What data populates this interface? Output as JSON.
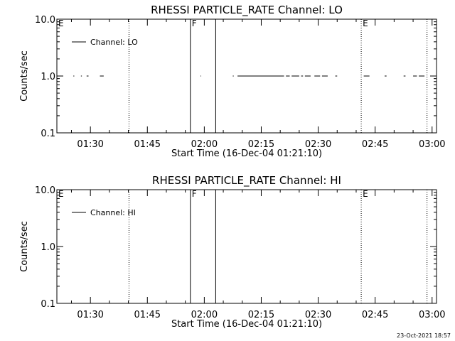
{
  "footer": {
    "timestamp": "23-Oct-2021 18:57"
  },
  "chart_data": [
    {
      "type": "line",
      "title": "RHESSI PARTICLE_RATE Channel: LO",
      "xlabel": "Start Time (16-Dec-04 01:21:10)",
      "ylabel": "Counts/sec",
      "y_scale": "log",
      "ylim": [
        0.1,
        10.0
      ],
      "xlim": [
        "01:21:10",
        "03:01:10"
      ],
      "x_tick_labels": [
        "01:30",
        "01:45",
        "02:00",
        "02:15",
        "02:30",
        "02:45",
        "03:00"
      ],
      "y_tick_labels": [
        "0.1",
        "1.0",
        "10.0"
      ],
      "legend": {
        "position": "top-left",
        "entries": [
          "Channel: LO"
        ]
      },
      "series": [
        {
          "name": "Channel: LO",
          "color": "#000000",
          "segments": [
            {
              "x": [
                "01:25:30",
                "01:25:45"
              ],
              "y": [
                1.0,
                1.0
              ]
            },
            {
              "x": [
                "01:27:30",
                "01:27:45"
              ],
              "y": [
                1.0,
                1.0
              ]
            },
            {
              "x": [
                "01:29:00",
                "01:29:30"
              ],
              "y": [
                1.0,
                1.0
              ]
            },
            {
              "x": [
                "01:32:30",
                "01:33:30"
              ],
              "y": [
                1.0,
                1.0
              ]
            },
            {
              "x": [
                "01:59:00",
                "01:59:10"
              ],
              "y": [
                1.0,
                1.0
              ]
            },
            {
              "x": [
                "02:07:30",
                "02:07:45"
              ],
              "y": [
                1.0,
                1.0
              ]
            },
            {
              "x": [
                "02:08:45",
                "02:21:00"
              ],
              "y": [
                1.0,
                1.0
              ]
            },
            {
              "x": [
                "02:21:30",
                "02:22:30"
              ],
              "y": [
                1.0,
                1.0
              ]
            },
            {
              "x": [
                "02:23:00",
                "02:25:00"
              ],
              "y": [
                1.0,
                1.0
              ]
            },
            {
              "x": [
                "02:25:30",
                "02:26:00"
              ],
              "y": [
                1.0,
                1.0
              ]
            },
            {
              "x": [
                "02:26:30",
                "02:28:00"
              ],
              "y": [
                1.0,
                1.0
              ]
            },
            {
              "x": [
                "02:29:00",
                "02:30:30"
              ],
              "y": [
                1.0,
                1.0
              ]
            },
            {
              "x": [
                "02:31:00",
                "02:32:30"
              ],
              "y": [
                1.0,
                1.0
              ]
            },
            {
              "x": [
                "02:34:30",
                "02:35:00"
              ],
              "y": [
                1.0,
                1.0
              ]
            },
            {
              "x": [
                "02:42:00",
                "02:43:30"
              ],
              "y": [
                1.0,
                1.0
              ]
            },
            {
              "x": [
                "02:47:30",
                "02:48:00"
              ],
              "y": [
                1.0,
                1.0
              ]
            },
            {
              "x": [
                "02:52:30",
                "02:53:00"
              ],
              "y": [
                1.0,
                1.0
              ]
            },
            {
              "x": [
                "02:55:00",
                "02:56:00"
              ],
              "y": [
                1.0,
                1.0
              ]
            },
            {
              "x": [
                "02:56:30",
                "02:58:00"
              ],
              "y": [
                1.0,
                1.0
              ]
            }
          ]
        }
      ],
      "markers": [
        {
          "time": "01:21:10",
          "style": "dotted",
          "label": "E"
        },
        {
          "time": "01:40:10",
          "style": "dotted",
          "label": ""
        },
        {
          "time": "01:56:20",
          "style": "solid",
          "label": "F"
        },
        {
          "time": "02:03:00",
          "style": "solid",
          "label": ""
        },
        {
          "time": "02:41:20",
          "style": "dotted",
          "label": "E"
        },
        {
          "time": "02:58:40",
          "style": "dotted",
          "label": ""
        }
      ]
    },
    {
      "type": "line",
      "title": "RHESSI PARTICLE_RATE Channel: HI",
      "xlabel": "Start Time (16-Dec-04 01:21:10)",
      "ylabel": "Counts/sec",
      "y_scale": "log",
      "ylim": [
        0.1,
        10.0
      ],
      "xlim": [
        "01:21:10",
        "03:01:10"
      ],
      "x_tick_labels": [
        "01:30",
        "01:45",
        "02:00",
        "02:15",
        "02:30",
        "02:45",
        "03:00"
      ],
      "y_tick_labels": [
        "0.1",
        "1.0",
        "10.0"
      ],
      "legend": {
        "position": "top-left",
        "entries": [
          "Channel: HI"
        ]
      },
      "series": [
        {
          "name": "Channel: HI",
          "color": "#000000",
          "segments": []
        }
      ],
      "markers": [
        {
          "time": "01:21:10",
          "style": "dotted",
          "label": "E"
        },
        {
          "time": "01:40:10",
          "style": "dotted",
          "label": ""
        },
        {
          "time": "01:56:20",
          "style": "solid",
          "label": "F"
        },
        {
          "time": "02:03:00",
          "style": "solid",
          "label": ""
        },
        {
          "time": "02:41:20",
          "style": "dotted",
          "label": "E"
        },
        {
          "time": "02:58:40",
          "style": "dotted",
          "label": ""
        }
      ]
    }
  ]
}
